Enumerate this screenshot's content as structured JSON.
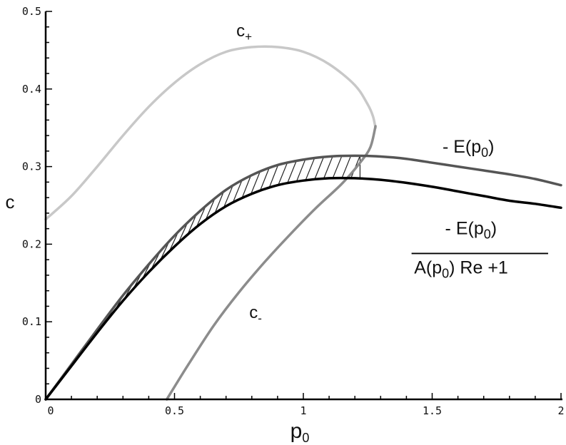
{
  "chart_data": {
    "type": "line",
    "xlabel": "p",
    "xlabel_sub": "0",
    "ylabel": "c",
    "xlim": [
      0,
      2
    ],
    "ylim": [
      0,
      0.5
    ],
    "x_ticks": [
      0,
      0.5,
      1,
      1.5,
      2
    ],
    "x_tick_labels": [
      "0",
      "0.5",
      "1",
      "1.5",
      "2"
    ],
    "y_ticks": [
      0,
      0.1,
      0.2,
      0.3,
      0.4,
      0.5
    ],
    "y_tick_labels": [
      "0",
      "0.1",
      "0.2",
      "0.3",
      "0.4",
      "0.5"
    ],
    "grid": false,
    "legend": "none",
    "series": [
      {
        "id": "c_plus",
        "color": "#c8c8c8",
        "x": [
          0,
          0.1,
          0.2,
          0.3,
          0.4,
          0.5,
          0.6,
          0.7,
          0.8,
          0.9,
          1.0,
          1.1,
          1.2,
          1.25,
          1.27,
          1.28
        ],
        "y": [
          0.232,
          0.262,
          0.3,
          0.34,
          0.377,
          0.408,
          0.432,
          0.448,
          0.454,
          0.454,
          0.448,
          0.432,
          0.405,
          0.38,
          0.365,
          0.35
        ]
      },
      {
        "id": "c_minus",
        "color": "#8c8c8c",
        "x": [
          0.47,
          0.55,
          0.65,
          0.75,
          0.85,
          0.95,
          1.05,
          1.15,
          1.22,
          1.26,
          1.28
        ],
        "y": [
          0,
          0.043,
          0.094,
          0.138,
          0.177,
          0.213,
          0.247,
          0.278,
          0.305,
          0.325,
          0.352
        ]
      },
      {
        "id": "neg_E",
        "color": "#555555",
        "x": [
          0,
          0.1,
          0.2,
          0.3,
          0.4,
          0.5,
          0.6,
          0.7,
          0.8,
          0.9,
          1.0,
          1.1,
          1.2,
          1.3,
          1.4,
          1.5,
          1.6,
          1.7,
          1.8,
          1.9,
          2.0
        ],
        "y": [
          0,
          0.045,
          0.09,
          0.134,
          0.174,
          0.211,
          0.243,
          0.27,
          0.289,
          0.302,
          0.309,
          0.313,
          0.314,
          0.313,
          0.31,
          0.305,
          0.3,
          0.295,
          0.29,
          0.284,
          0.276
        ]
      },
      {
        "id": "neg_E_over_ARe1",
        "color": "#000000",
        "x": [
          0,
          0.1,
          0.2,
          0.3,
          0.4,
          0.5,
          0.6,
          0.7,
          0.8,
          0.9,
          1.0,
          1.1,
          1.2,
          1.3,
          1.4,
          1.5,
          1.6,
          1.7,
          1.8,
          1.9,
          2.0
        ],
        "y": [
          0,
          0.043,
          0.086,
          0.127,
          0.164,
          0.197,
          0.226,
          0.249,
          0.265,
          0.276,
          0.282,
          0.285,
          0.285,
          0.283,
          0.279,
          0.274,
          0.268,
          0.262,
          0.256,
          0.252,
          0.247
        ]
      }
    ],
    "hatched_region": {
      "between": [
        "neg_E",
        "neg_E_over_ARe1"
      ],
      "x_range": [
        0.02,
        1.22
      ]
    },
    "annotations": [
      {
        "id": "c_plus",
        "label": "c",
        "sub": "+",
        "x": 0.74,
        "y": 0.468
      },
      {
        "id": "c_minus",
        "label": "c",
        "sub": "-",
        "x": 0.79,
        "y": 0.105
      },
      {
        "id": "neg_E",
        "label": "- E(p",
        "sub": "0",
        "close": ")",
        "x": 1.54,
        "y": 0.318
      },
      {
        "id": "frac_num",
        "label": "- E(p",
        "sub": "0",
        "close": ")",
        "x": 1.55,
        "y": 0.213
      },
      {
        "id": "frac_den",
        "label": "A(p",
        "sub": "0",
        "close": ") Re +1",
        "x": 1.43,
        "y": 0.162
      }
    ]
  }
}
